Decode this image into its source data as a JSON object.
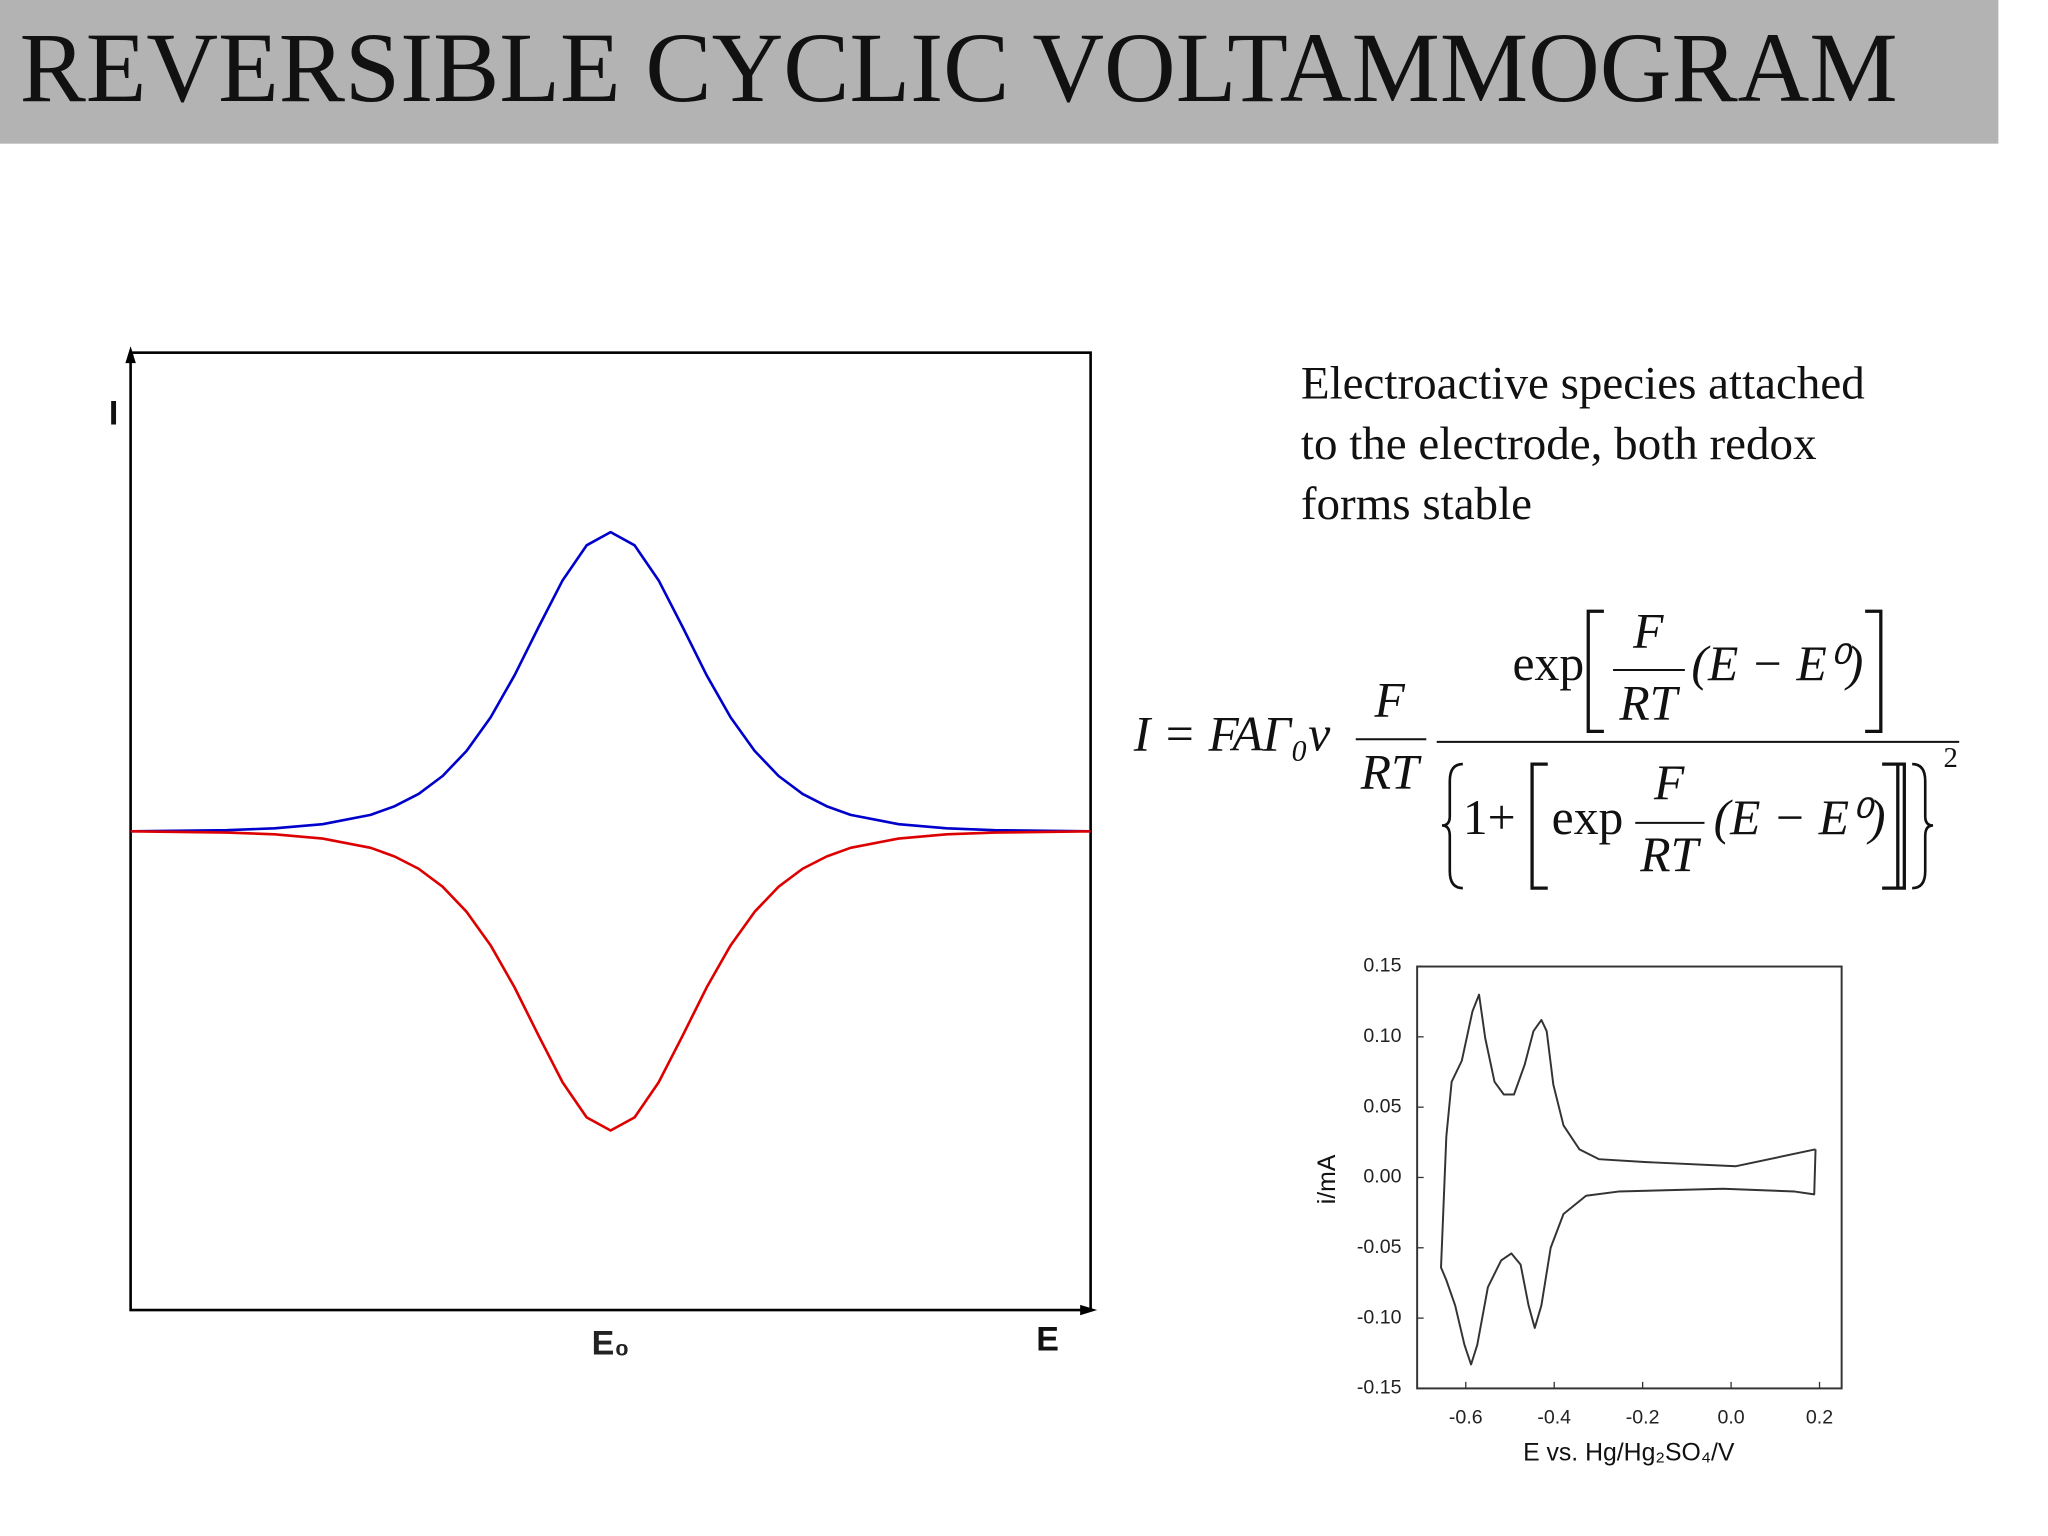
{
  "title": "REVERSIBLE CYCLIC VOLTAMMOGRAM",
  "description": {
    "lines": [
      "Electroactive species attached",
      "to the electrode, both redox",
      "forms stable"
    ]
  },
  "equation": {
    "lhs": "I = FAΓ₀v",
    "factor": [
      "F",
      "RT"
    ],
    "numerator": {
      "func": "exp",
      "frac": [
        "F",
        "RT"
      ],
      "arg": "(E − E⁰)"
    },
    "denominator": {
      "lead": "1+",
      "func": "exp",
      "frac": [
        "F",
        "RT"
      ],
      "arg": "(E − E⁰)"
    },
    "power": "2"
  },
  "chart_data": [
    {
      "type": "line",
      "x_label": "E",
      "y_label": "I",
      "xlim": [
        -1,
        1
      ],
      "ylim": [
        -1.6,
        1.6
      ],
      "xticks": [
        {
          "value": 0,
          "label": "E₀"
        }
      ],
      "x": [
        -1,
        -0.8,
        -0.7,
        -0.6,
        -0.5,
        -0.45,
        -0.4,
        -0.35,
        -0.3,
        -0.25,
        -0.2,
        -0.15,
        -0.1,
        -0.05,
        0,
        0.05,
        0.1,
        0.15,
        0.2,
        0.25,
        0.3,
        0.35,
        0.4,
        0.45,
        0.5,
        0.6,
        0.7,
        0.8,
        1
      ],
      "series": [
        {
          "color": "#0000cc",
          "values": [
            0,
            0.004,
            0.01,
            0.024,
            0.055,
            0.084,
            0.125,
            0.185,
            0.269,
            0.381,
            0.522,
            0.683,
            0.839,
            0.956,
            1,
            0.956,
            0.839,
            0.683,
            0.522,
            0.381,
            0.269,
            0.185,
            0.125,
            0.084,
            0.055,
            0.024,
            0.01,
            0.004,
            0
          ]
        },
        {
          "color": "#dd0000",
          "values": [
            0,
            -0.004,
            -0.01,
            -0.024,
            -0.055,
            -0.084,
            -0.125,
            -0.185,
            -0.269,
            -0.381,
            -0.522,
            -0.683,
            -0.839,
            -0.956,
            -1,
            -0.956,
            -0.839,
            -0.683,
            -0.522,
            -0.381,
            -0.269,
            -0.185,
            -0.125,
            -0.084,
            -0.055,
            -0.024,
            -0.01,
            -0.004,
            0
          ]
        }
      ]
    },
    {
      "type": "line",
      "x_label": "E vs. Hg/Hg₂SO₄/V",
      "y_label": "i/mA",
      "xlim": [
        -0.71,
        0.25
      ],
      "ylim": [
        -0.15,
        0.15
      ],
      "xticks": [
        -0.6,
        -0.4,
        -0.2,
        {
          "value": 0,
          "label": "0.0"
        },
        0.2
      ],
      "yticks": [
        0.15,
        {
          "value": 0.1,
          "label": "0.10"
        },
        0.05,
        {
          "value": 0,
          "label": "0.00"
        },
        -0.05,
        {
          "value": -0.1,
          "label": "-0.10"
        },
        -0.15
      ],
      "x": [
        0.191,
        0.011,
        -0.196,
        -0.299,
        -0.343,
        -0.379,
        -0.402,
        -0.417,
        -0.429,
        -0.447,
        -0.467,
        -0.491,
        -0.514,
        -0.535,
        -0.556,
        -0.57,
        -0.585,
        -0.609,
        -0.632,
        -0.644,
        -0.656,
        -0.644,
        -0.624,
        -0.603,
        -0.588,
        -0.574,
        -0.55,
        -0.52,
        -0.497,
        -0.476,
        -0.458,
        -0.444,
        -0.429,
        -0.408,
        -0.379,
        -0.328,
        -0.255,
        -0.018,
        0.144,
        0.188,
        0.191
      ],
      "series": [
        {
          "color": "#333333",
          "values": [
            0.02,
            0.008,
            0.011,
            0.013,
            0.02,
            0.037,
            0.066,
            0.104,
            0.112,
            0.104,
            0.08,
            0.059,
            0.059,
            0.068,
            0.099,
            0.13,
            0.118,
            0.083,
            0.068,
            0.029,
            -0.064,
            -0.073,
            -0.091,
            -0.119,
            -0.133,
            -0.119,
            -0.078,
            -0.059,
            -0.054,
            -0.062,
            -0.091,
            -0.107,
            -0.091,
            -0.05,
            -0.026,
            -0.013,
            -0.01,
            -0.008,
            -0.01,
            -0.012,
            0.02
          ]
        }
      ]
    }
  ]
}
